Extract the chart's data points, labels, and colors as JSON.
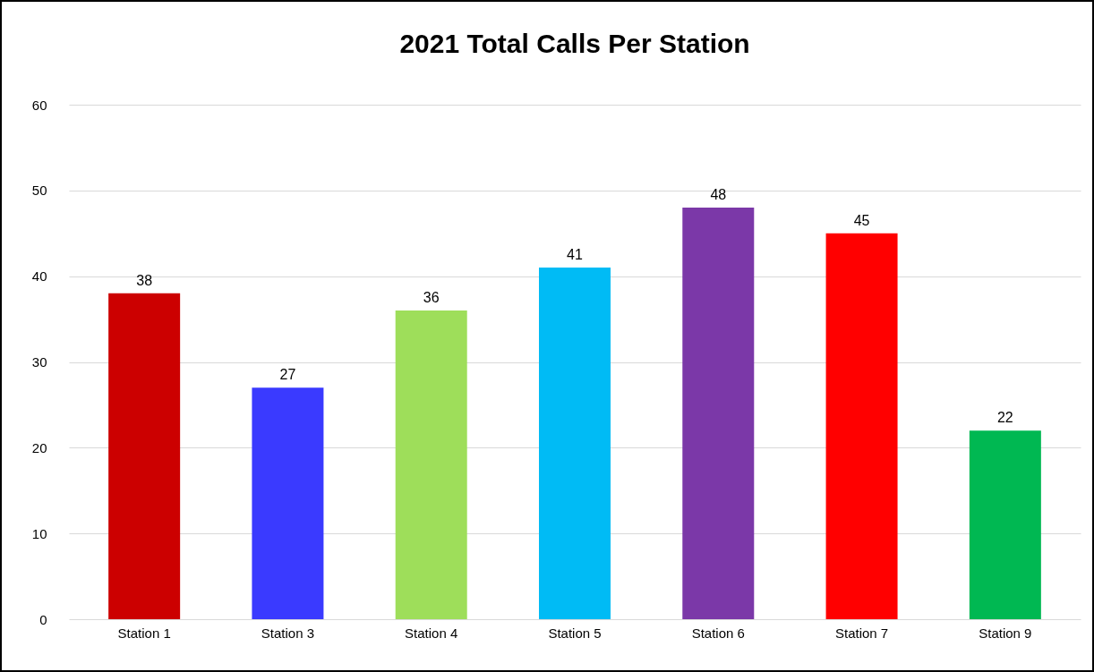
{
  "chart_data": {
    "type": "bar",
    "title": "2021 Total Calls Per Station",
    "categories": [
      "Station 1",
      "Station 3",
      "Station 4",
      "Station 5",
      "Station 6",
      "Station 7",
      "Station 9"
    ],
    "values": [
      38,
      27,
      36,
      41,
      48,
      45,
      22
    ],
    "colors": [
      "#cc0000",
      "#3a3aff",
      "#9ede5a",
      "#00bbf5",
      "#7b38a8",
      "#ff0000",
      "#00b852"
    ],
    "ylim": [
      0,
      60
    ],
    "yticks": [
      0,
      10,
      20,
      30,
      40,
      50,
      60
    ],
    "grid": "y",
    "data_labels": true
  }
}
